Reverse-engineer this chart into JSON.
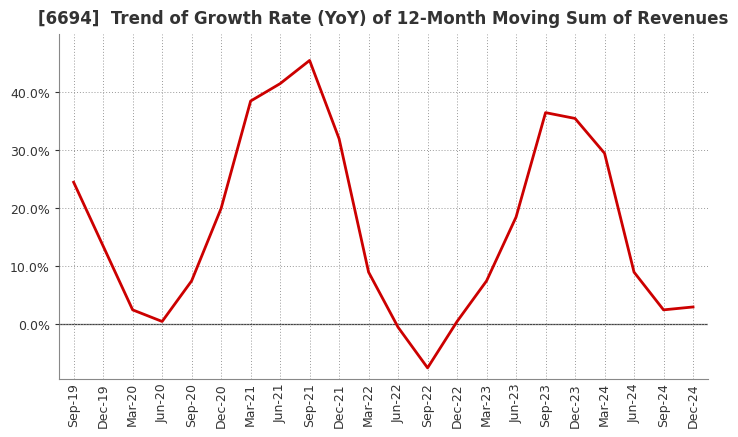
{
  "title": "[6694]  Trend of Growth Rate (YoY) of 12-Month Moving Sum of Revenues",
  "x_labels": [
    "Sep-19",
    "Dec-19",
    "Mar-20",
    "Jun-20",
    "Sep-20",
    "Dec-20",
    "Mar-21",
    "Jun-21",
    "Sep-21",
    "Dec-21",
    "Mar-22",
    "Jun-22",
    "Sep-22",
    "Dec-22",
    "Mar-23",
    "Jun-23",
    "Sep-23",
    "Dec-23",
    "Mar-24",
    "Jun-24",
    "Sep-24",
    "Dec-24"
  ],
  "y_values": [
    0.245,
    0.135,
    0.025,
    0.005,
    0.075,
    0.2,
    0.385,
    0.415,
    0.455,
    0.32,
    0.09,
    -0.005,
    -0.075,
    0.005,
    0.075,
    0.185,
    0.365,
    0.355,
    0.295,
    0.09,
    0.025,
    0.03
  ],
  "line_color": "#cc0000",
  "line_width": 2.0,
  "ylim": [
    -0.095,
    0.5
  ],
  "yticks": [
    0.0,
    0.1,
    0.2,
    0.3,
    0.4
  ],
  "background_color": "#ffffff",
  "plot_bg_color": "#ffffff",
  "grid_color": "#999999",
  "title_fontsize": 12,
  "tick_fontsize": 9,
  "title_color": "#333333"
}
